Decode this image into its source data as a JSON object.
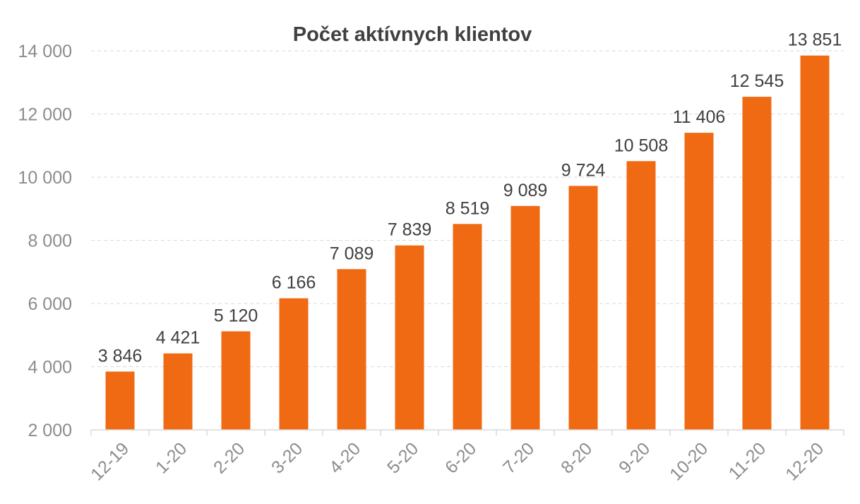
{
  "chart_data": {
    "type": "bar",
    "title": "Počet aktívnych klientov",
    "categories": [
      "12-19",
      "1-20",
      "2-20",
      "3-20",
      "4-20",
      "5-20",
      "6-20",
      "7-20",
      "8-20",
      "9-20",
      "10-20",
      "11-20",
      "12-20"
    ],
    "values": [
      3846,
      4421,
      5120,
      6166,
      7089,
      7839,
      8519,
      9089,
      9724,
      10508,
      11406,
      12545,
      13851
    ],
    "value_labels": [
      "3 846",
      "4 421",
      "5 120",
      "6 166",
      "7 089",
      "7 839",
      "8 519",
      "9 089",
      "9 724",
      "10 508",
      "11 406",
      "12 545",
      "13 851"
    ],
    "yticks": [
      2000,
      4000,
      6000,
      8000,
      10000,
      12000,
      14000
    ],
    "ytick_labels": [
      "2 000",
      "4 000",
      "6 000",
      "8 000",
      "10 000",
      "12 000",
      "14 000"
    ],
    "ylim": [
      2000,
      14000
    ],
    "grid": true,
    "legend": "none",
    "bar_color": "#f06a13"
  }
}
